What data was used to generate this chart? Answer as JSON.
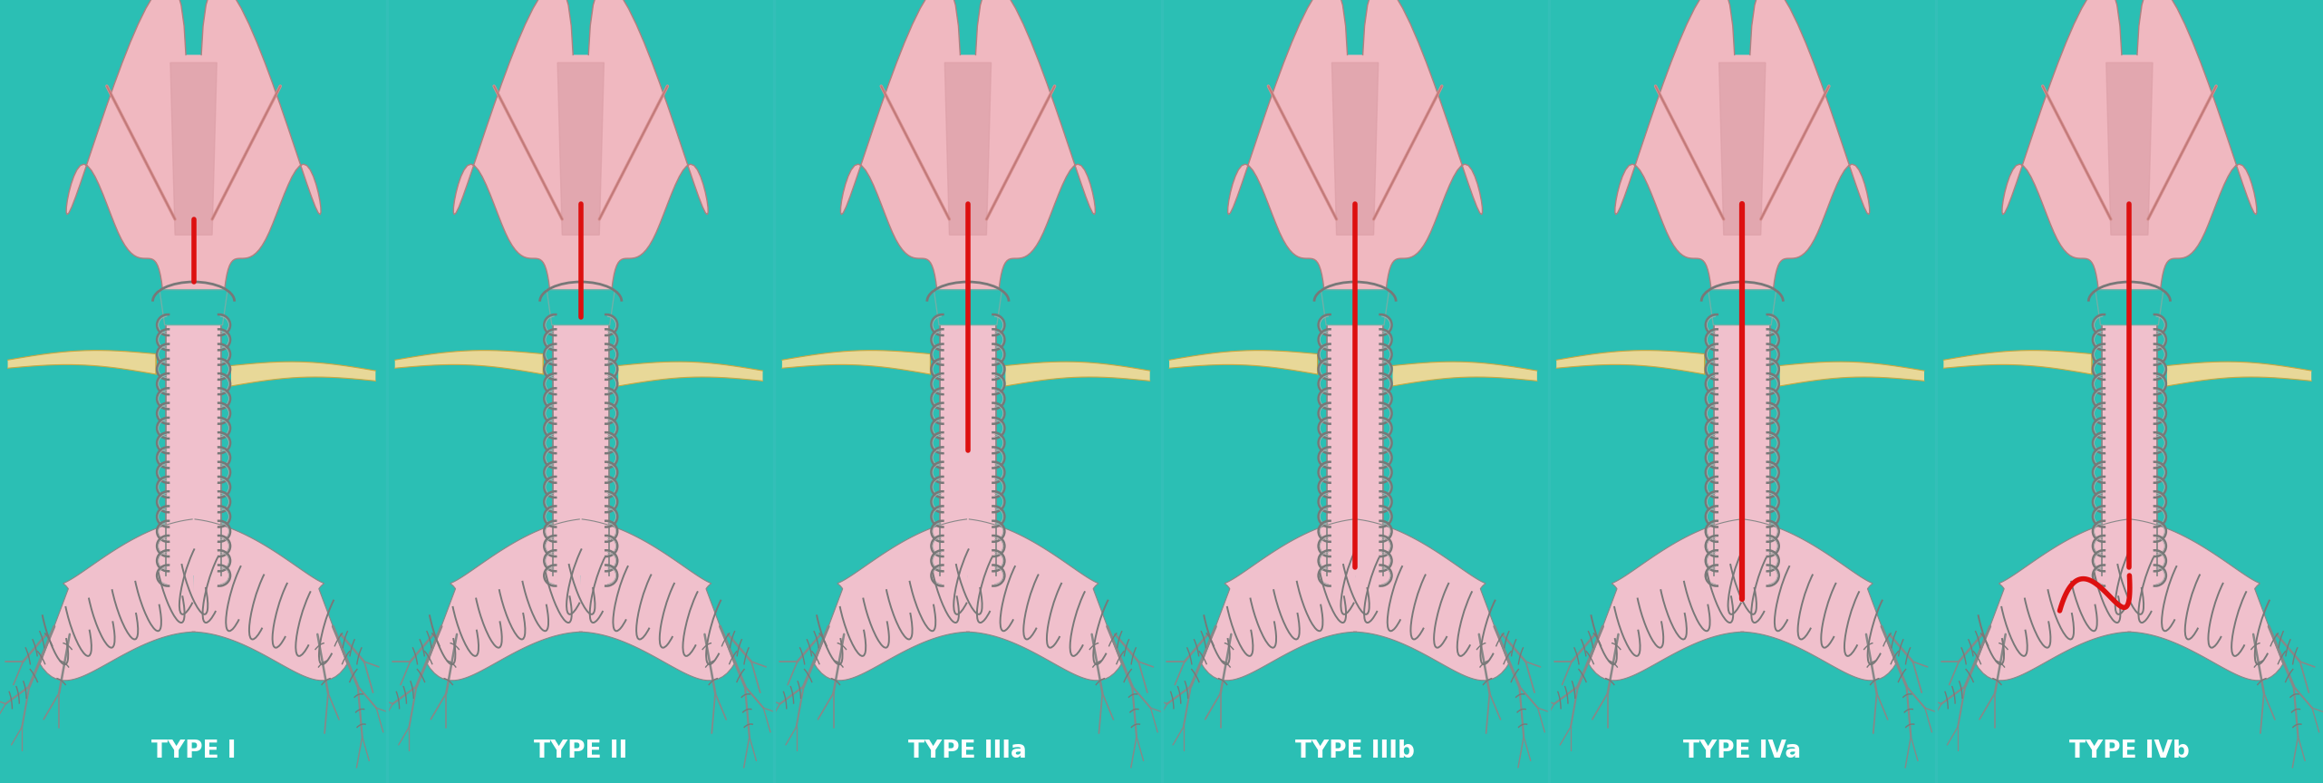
{
  "background_color": "#2bbfb4",
  "text_color": "#ffffff",
  "text_fontsize": 19,
  "trachea_fill": "#f0c0cc",
  "trachea_edge": "#909090",
  "larynx_fill": "#f0b8c0",
  "larynx_inner": "#d89090",
  "larynx_edge": "#b08080",
  "red_cleft": "#dd1010",
  "rib_fill": "#e8d898",
  "rib_edge": "#c8a840",
  "ring_color": "#787878",
  "ring_light": "#aaaaaa",
  "bronchi_fill": "#f0c0cc",
  "labels": [
    "TYPE I",
    "TYPE II",
    "TYPE IIIa",
    "TYPE IIIb",
    "TYPE IVa",
    "TYPE IVb"
  ],
  "n_panels": 6,
  "divider_color": "#33bfb8"
}
